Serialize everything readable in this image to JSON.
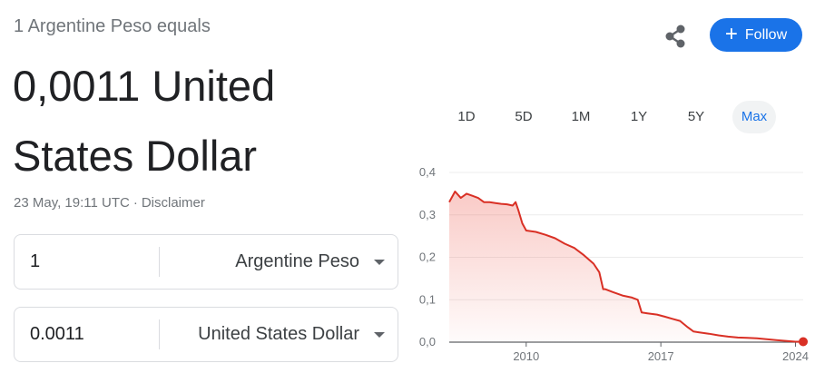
{
  "header": {
    "equals_text": "1 Argentine Peso equals",
    "result_text": "0,0011 United States Dollar",
    "timestamp": "23 May, 19:11 UTC",
    "separator": "·",
    "disclaimer_label": "Disclaimer"
  },
  "actions": {
    "share_icon": "share-icon",
    "follow_label": "Follow",
    "follow_icon": "plus-icon",
    "accent_color": "#1a73e8"
  },
  "converter": {
    "from": {
      "amount": "1",
      "currency": "Argentine Peso"
    },
    "to": {
      "amount": "0.0011",
      "currency": "United States Dollar"
    }
  },
  "range_tabs": [
    {
      "label": "1D",
      "active": false
    },
    {
      "label": "5D",
      "active": false
    },
    {
      "label": "1M",
      "active": false
    },
    {
      "label": "1Y",
      "active": false
    },
    {
      "label": "5Y",
      "active": false
    },
    {
      "label": "Max",
      "active": true
    }
  ],
  "chart_data": {
    "type": "area",
    "title": "",
    "xlabel": "",
    "ylabel": "",
    "line_color": "#d93025",
    "x_range": [
      2006,
      2024.4
    ],
    "ylim": [
      0,
      0.4
    ],
    "y_ticks": [
      "0,0",
      "0,1",
      "0,2",
      "0,3",
      "0,4"
    ],
    "y_tick_values": [
      0,
      0.1,
      0.2,
      0.3,
      0.4
    ],
    "x_ticks": [
      "2010",
      "2017",
      "2024"
    ],
    "x_tick_values": [
      2010,
      2017,
      2024
    ],
    "grid": true,
    "series": [
      {
        "x": [
          2006.0,
          2006.3,
          2006.6,
          2006.9,
          2007.2,
          2007.5,
          2007.8,
          2008.1,
          2008.4,
          2008.7,
          2009.0,
          2009.3,
          2009.45,
          2009.6,
          2009.8,
          2010.0,
          2010.5,
          2011.0,
          2011.5,
          2012.0,
          2012.5,
          2013.0,
          2013.5,
          2013.8,
          2014.0,
          2014.1,
          2014.5,
          2015.0,
          2015.5,
          2015.8,
          2016.0,
          2016.3,
          2016.8,
          2017.2,
          2017.6,
          2018.0,
          2018.4,
          2018.7,
          2019.0,
          2019.5,
          2020.0,
          2020.5,
          2021.0,
          2021.5,
          2022.0,
          2022.5,
          2023.0,
          2023.5,
          2024.0,
          2024.4
        ],
        "values": [
          0.33,
          0.355,
          0.34,
          0.35,
          0.345,
          0.34,
          0.33,
          0.33,
          0.328,
          0.326,
          0.325,
          0.322,
          0.33,
          0.31,
          0.28,
          0.263,
          0.26,
          0.253,
          0.245,
          0.232,
          0.222,
          0.205,
          0.185,
          0.165,
          0.125,
          0.125,
          0.118,
          0.11,
          0.105,
          0.1,
          0.07,
          0.068,
          0.065,
          0.06,
          0.055,
          0.05,
          0.035,
          0.025,
          0.023,
          0.02,
          0.016,
          0.013,
          0.011,
          0.01,
          0.009,
          0.007,
          0.005,
          0.003,
          0.001,
          0.0011
        ]
      }
    ]
  }
}
